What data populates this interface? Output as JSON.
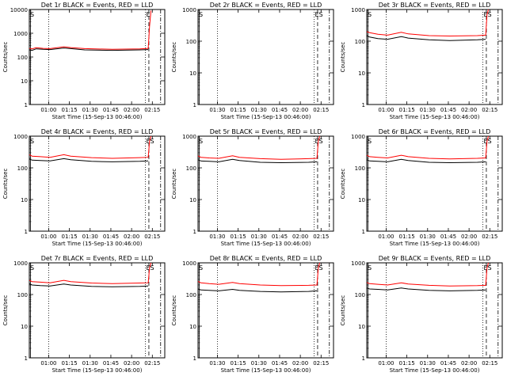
{
  "colors": {
    "events": "#000000",
    "lld": "#ff0000",
    "background": "#ffffff",
    "axis": "#000000"
  },
  "common": {
    "ylabel": "Counts/sec",
    "xlabel": "Start Time (15-Sep-13 00:46:00)",
    "ylog": true
  },
  "chart_data": [
    {
      "type": "line",
      "title": "Det 1r BLACK = Events, RED = LLD",
      "x_ticks": [
        "01:00",
        "01:15",
        "01:30",
        "01:45",
        "02:00",
        "02:15"
      ],
      "y_ticks": [
        "1",
        "10",
        "100",
        "1000",
        "10000"
      ],
      "ylim": [
        1,
        10000
      ],
      "xlim_minutes_from_start": [
        0,
        98
      ],
      "start_label": "S",
      "end_label": "E",
      "series": [
        {
          "name": "Events",
          "color": "#000000",
          "values": [
            [
              0,
              200
            ],
            [
              2,
              190
            ],
            [
              5,
              220
            ],
            [
              10,
              210
            ],
            [
              15,
              205
            ],
            [
              25,
              240
            ],
            [
              30,
              225
            ],
            [
              40,
              200
            ],
            [
              60,
              190
            ],
            [
              80,
              200
            ],
            [
              86,
              205
            ]
          ]
        },
        {
          "name": "LLD",
          "color": "#ff0000",
          "values": [
            [
              0,
              230
            ],
            [
              2,
              220
            ],
            [
              5,
              245
            ],
            [
              10,
              230
            ],
            [
              15,
              225
            ],
            [
              25,
              270
            ],
            [
              30,
              250
            ],
            [
              40,
              225
            ],
            [
              60,
              210
            ],
            [
              80,
              220
            ],
            [
              86,
              230
            ],
            [
              87,
              2000
            ],
            [
              88,
              9000
            ]
          ]
        }
      ]
    },
    {
      "type": "line",
      "title": "Det 2r BLACK = Events, RED = LLD",
      "x_ticks": [
        "01:30",
        "01:15",
        "01:30",
        "01:45",
        "02:00",
        "02:15"
      ],
      "y_ticks": [
        "1",
        "10",
        "100",
        "1000"
      ],
      "ylim": [
        1,
        1000
      ],
      "xlim_minutes_from_start": [
        0,
        98
      ],
      "start_label": "S",
      "end_label": "ES",
      "series": []
    },
    {
      "type": "line",
      "title": "Det 3r BLACK = Events, RED = LLD",
      "x_ticks": [
        "01:00",
        "01:15",
        "01:30",
        "01:45",
        "02:00",
        "02:15"
      ],
      "y_ticks": [
        "1",
        "10",
        "100",
        "1000"
      ],
      "ylim": [
        1,
        1000
      ],
      "xlim_minutes_from_start": [
        0,
        98
      ],
      "start_label": "S",
      "end_label": "ES",
      "series": [
        {
          "name": "Events",
          "color": "#000000",
          "values": [
            [
              0,
              150
            ],
            [
              2,
              135
            ],
            [
              8,
              120
            ],
            [
              15,
              115
            ],
            [
              25,
              140
            ],
            [
              30,
              125
            ],
            [
              45,
              110
            ],
            [
              60,
              105
            ],
            [
              80,
              110
            ],
            [
              86,
              115
            ]
          ]
        },
        {
          "name": "LLD",
          "color": "#ff0000",
          "values": [
            [
              0,
              200
            ],
            [
              2,
              185
            ],
            [
              8,
              165
            ],
            [
              15,
              155
            ],
            [
              25,
              190
            ],
            [
              30,
              170
            ],
            [
              45,
              150
            ],
            [
              60,
              145
            ],
            [
              80,
              150
            ],
            [
              86,
              155
            ],
            [
              87,
              700
            ],
            [
              88,
              1000
            ]
          ]
        }
      ]
    },
    {
      "type": "line",
      "title": "Det 4r BLACK = Events, RED = LLD",
      "x_ticks": [
        "01:00",
        "01:15",
        "01:30",
        "01:45",
        "02:00",
        "02:15"
      ],
      "y_ticks": [
        "1",
        "10",
        "100",
        "1000"
      ],
      "ylim": [
        1,
        1000
      ],
      "xlim_minutes_from_start": [
        0,
        98
      ],
      "start_label": "S",
      "end_label": "ES",
      "series": [
        {
          "name": "Events",
          "color": "#000000",
          "values": [
            [
              0,
              190
            ],
            [
              2,
              175
            ],
            [
              8,
              170
            ],
            [
              15,
              165
            ],
            [
              25,
              195
            ],
            [
              30,
              180
            ],
            [
              45,
              160
            ],
            [
              60,
              155
            ],
            [
              80,
              160
            ],
            [
              86,
              165
            ]
          ]
        },
        {
          "name": "LLD",
          "color": "#ff0000",
          "values": [
            [
              0,
              260
            ],
            [
              2,
              235
            ],
            [
              8,
              225
            ],
            [
              15,
              215
            ],
            [
              25,
              260
            ],
            [
              30,
              235
            ],
            [
              45,
              210
            ],
            [
              60,
              200
            ],
            [
              80,
              210
            ],
            [
              86,
              215
            ],
            [
              87,
              700
            ],
            [
              88,
              1000
            ]
          ]
        }
      ]
    },
    {
      "type": "line",
      "title": "Det 5r BLACK = Events, RED = LLD",
      "x_ticks": [
        "01:30",
        "01:15",
        "01:30",
        "01:45",
        "02:00",
        "02:15"
      ],
      "y_ticks": [
        "1",
        "10",
        "100",
        "1000"
      ],
      "ylim": [
        1,
        1000
      ],
      "xlim_minutes_from_start": [
        0,
        98
      ],
      "start_label": "S",
      "end_label": "ES",
      "series": [
        {
          "name": "Events",
          "color": "#000000",
          "values": [
            [
              0,
              180
            ],
            [
              2,
              165
            ],
            [
              8,
              160
            ],
            [
              15,
              155
            ],
            [
              25,
              185
            ],
            [
              30,
              170
            ],
            [
              45,
              150
            ],
            [
              60,
              145
            ],
            [
              80,
              150
            ],
            [
              86,
              155
            ]
          ]
        },
        {
          "name": "LLD",
          "color": "#ff0000",
          "values": [
            [
              0,
              240
            ],
            [
              2,
              215
            ],
            [
              8,
              205
            ],
            [
              15,
              200
            ],
            [
              25,
              240
            ],
            [
              30,
              215
            ],
            [
              45,
              195
            ],
            [
              60,
              185
            ],
            [
              80,
              195
            ],
            [
              86,
              200
            ],
            [
              87,
              700
            ],
            [
              88,
              1000
            ]
          ]
        }
      ]
    },
    {
      "type": "line",
      "title": "Det 6r BLACK = Events, RED = LLD",
      "x_ticks": [
        "01:00",
        "01:15",
        "01:30",
        "01:45",
        "02:00",
        "02:15"
      ],
      "y_ticks": [
        "1",
        "10",
        "100",
        "1000"
      ],
      "ylim": [
        1,
        1000
      ],
      "xlim_minutes_from_start": [
        0,
        98
      ],
      "start_label": "S",
      "end_label": "ES",
      "series": [
        {
          "name": "Events",
          "color": "#000000",
          "values": [
            [
              0,
              180
            ],
            [
              2,
              165
            ],
            [
              8,
              160
            ],
            [
              15,
              155
            ],
            [
              25,
              185
            ],
            [
              30,
              170
            ],
            [
              45,
              150
            ],
            [
              60,
              145
            ],
            [
              80,
              150
            ],
            [
              86,
              155
            ]
          ]
        },
        {
          "name": "LLD",
          "color": "#ff0000",
          "values": [
            [
              0,
              250
            ],
            [
              2,
              225
            ],
            [
              8,
              215
            ],
            [
              15,
              205
            ],
            [
              25,
              250
            ],
            [
              30,
              225
            ],
            [
              45,
              200
            ],
            [
              60,
              190
            ],
            [
              80,
              200
            ],
            [
              86,
              205
            ],
            [
              87,
              700
            ],
            [
              88,
              1000
            ]
          ]
        }
      ]
    },
    {
      "type": "line",
      "title": "Det 7r BLACK = Events, RED = LLD",
      "x_ticks": [
        "01:00",
        "01:15",
        "01:30",
        "01:45",
        "02:00",
        "02:15"
      ],
      "y_ticks": [
        "1",
        "10",
        "100",
        "1000"
      ],
      "ylim": [
        1,
        1000
      ],
      "xlim_minutes_from_start": [
        0,
        98
      ],
      "start_label": "S",
      "end_label": "ES",
      "series": [
        {
          "name": "Events",
          "color": "#000000",
          "values": [
            [
              0,
              220
            ],
            [
              2,
              200
            ],
            [
              8,
              190
            ],
            [
              15,
              185
            ],
            [
              25,
              215
            ],
            [
              30,
              200
            ],
            [
              45,
              180
            ],
            [
              60,
              175
            ],
            [
              80,
              180
            ],
            [
              86,
              185
            ]
          ]
        },
        {
          "name": "LLD",
          "color": "#ff0000",
          "values": [
            [
              0,
              280
            ],
            [
              2,
              255
            ],
            [
              8,
              245
            ],
            [
              15,
              235
            ],
            [
              25,
              280
            ],
            [
              30,
              255
            ],
            [
              45,
              230
            ],
            [
              60,
              220
            ],
            [
              80,
              230
            ],
            [
              86,
              235
            ],
            [
              87,
              700
            ],
            [
              88,
              1000
            ]
          ]
        }
      ]
    },
    {
      "type": "line",
      "title": "Det 8r BLACK = Events, RED = LLD",
      "x_ticks": [
        "01:30",
        "01:15",
        "01:30",
        "01:45",
        "02:00",
        "02:15"
      ],
      "y_ticks": [
        "1",
        "10",
        "100",
        "1000"
      ],
      "ylim": [
        1,
        1000
      ],
      "xlim_minutes_from_start": [
        0,
        98
      ],
      "start_label": "S",
      "end_label": "ES",
      "series": [
        {
          "name": "Events",
          "color": "#000000",
          "values": [
            [
              0,
              150
            ],
            [
              2,
              140
            ],
            [
              8,
              135
            ],
            [
              15,
              130
            ],
            [
              25,
              145
            ],
            [
              30,
              135
            ],
            [
              45,
              125
            ],
            [
              60,
              120
            ],
            [
              80,
              125
            ],
            [
              86,
              130
            ]
          ]
        },
        {
          "name": "LLD",
          "color": "#ff0000",
          "values": [
            [
              0,
              260
            ],
            [
              2,
              235
            ],
            [
              8,
              220
            ],
            [
              15,
              210
            ],
            [
              25,
              240
            ],
            [
              30,
              220
            ],
            [
              45,
              200
            ],
            [
              60,
              190
            ],
            [
              80,
              195
            ],
            [
              86,
              200
            ],
            [
              87,
              700
            ],
            [
              88,
              1000
            ]
          ]
        }
      ]
    },
    {
      "type": "line",
      "title": "Det 9r BLACK = Events, RED = LLD",
      "x_ticks": [
        "01:00",
        "01:15",
        "01:30",
        "01:45",
        "02:00",
        "02:15"
      ],
      "y_ticks": [
        "1",
        "10",
        "100",
        "1000"
      ],
      "ylim": [
        1,
        1000
      ],
      "xlim_minutes_from_start": [
        0,
        98
      ],
      "start_label": "S",
      "end_label": "ES",
      "series": [
        {
          "name": "Events",
          "color": "#000000",
          "values": [
            [
              0,
              160
            ],
            [
              2,
              150
            ],
            [
              8,
              145
            ],
            [
              15,
              140
            ],
            [
              25,
              160
            ],
            [
              30,
              150
            ],
            [
              45,
              135
            ],
            [
              60,
              130
            ],
            [
              80,
              135
            ],
            [
              86,
              140
            ]
          ]
        },
        {
          "name": "LLD",
          "color": "#ff0000",
          "values": [
            [
              0,
              240
            ],
            [
              2,
              220
            ],
            [
              8,
              210
            ],
            [
              15,
              200
            ],
            [
              25,
              235
            ],
            [
              30,
              215
            ],
            [
              45,
              195
            ],
            [
              60,
              185
            ],
            [
              80,
              190
            ],
            [
              86,
              195
            ],
            [
              87,
              700
            ],
            [
              88,
              1000
            ]
          ]
        }
      ]
    }
  ]
}
